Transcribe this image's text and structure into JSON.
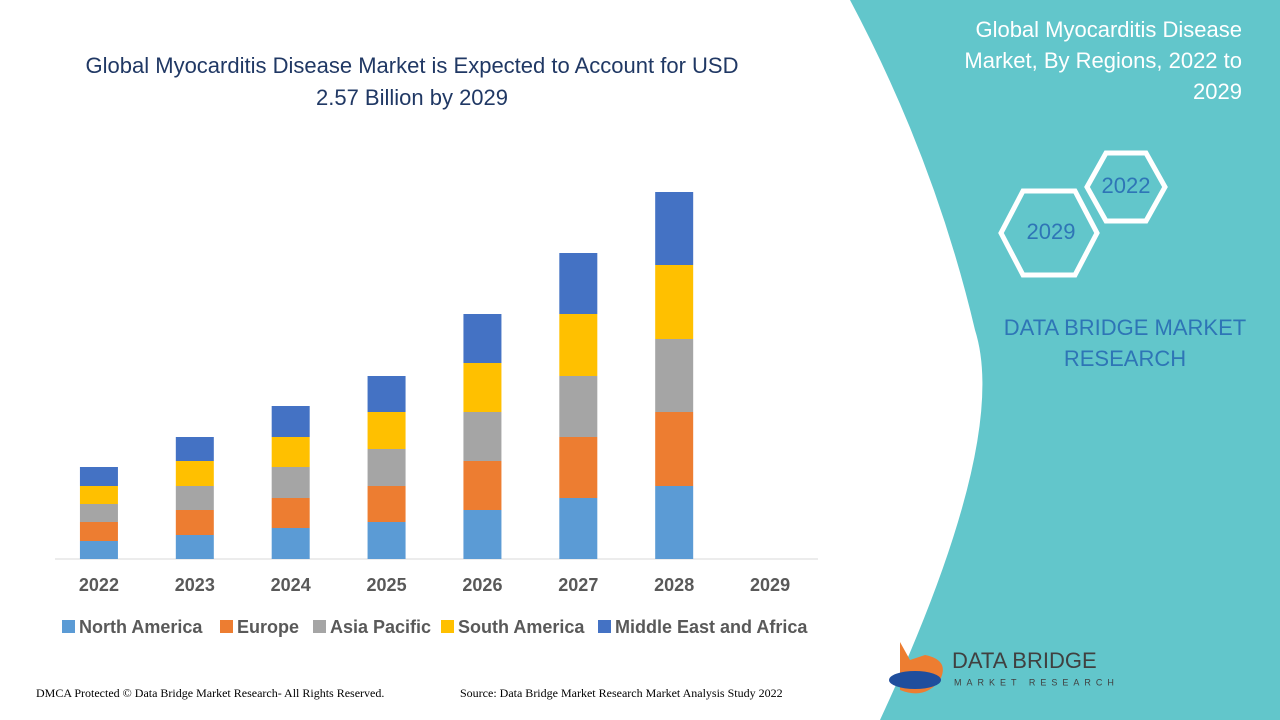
{
  "chart_data": {
    "type": "bar",
    "stacked": true,
    "title": "Global Myocarditis Disease Market is Expected to Account for USD 2.57 Billion by 2029",
    "categories": [
      "2022",
      "2023",
      "2024",
      "2025",
      "2026",
      "2027",
      "2028",
      "2029"
    ],
    "series": [
      {
        "name": "North America",
        "color": "#5b9bd5",
        "values": [
          18,
          24,
          31,
          37,
          49,
          61,
          73,
          null
        ]
      },
      {
        "name": "Europe",
        "color": "#ed7d31",
        "values": [
          19,
          25,
          30,
          36,
          49,
          61,
          74,
          null
        ]
      },
      {
        "name": "Asia Pacific",
        "color": "#a5a5a5",
        "values": [
          18,
          24,
          31,
          37,
          49,
          61,
          73,
          null
        ]
      },
      {
        "name": "South America",
        "color": "#ffc000",
        "values": [
          18,
          25,
          30,
          37,
          49,
          62,
          74,
          null
        ]
      },
      {
        "name": "Middle East and Africa",
        "color": "#4472c4",
        "values": [
          19,
          24,
          31,
          36,
          49,
          61,
          73,
          null
        ]
      }
    ],
    "ylim": [
      0,
      400
    ],
    "legend": "bottom"
  },
  "panel_title": "Global Myocarditis Disease Market, By Regions, 2022 to 2029",
  "badges": [
    "2022",
    "2029"
  ],
  "brand": "DATA BRIDGE MARKET RESEARCH",
  "logo": {
    "name": "DATA BRIDGE",
    "tagline": "MARKET RESEARCH"
  },
  "footer": {
    "copyright": "DMCA Protected © Data Bridge Market Research- All Rights Reserved.",
    "source": "Source: Data Bridge Market Research Market Analysis Study 2022"
  }
}
